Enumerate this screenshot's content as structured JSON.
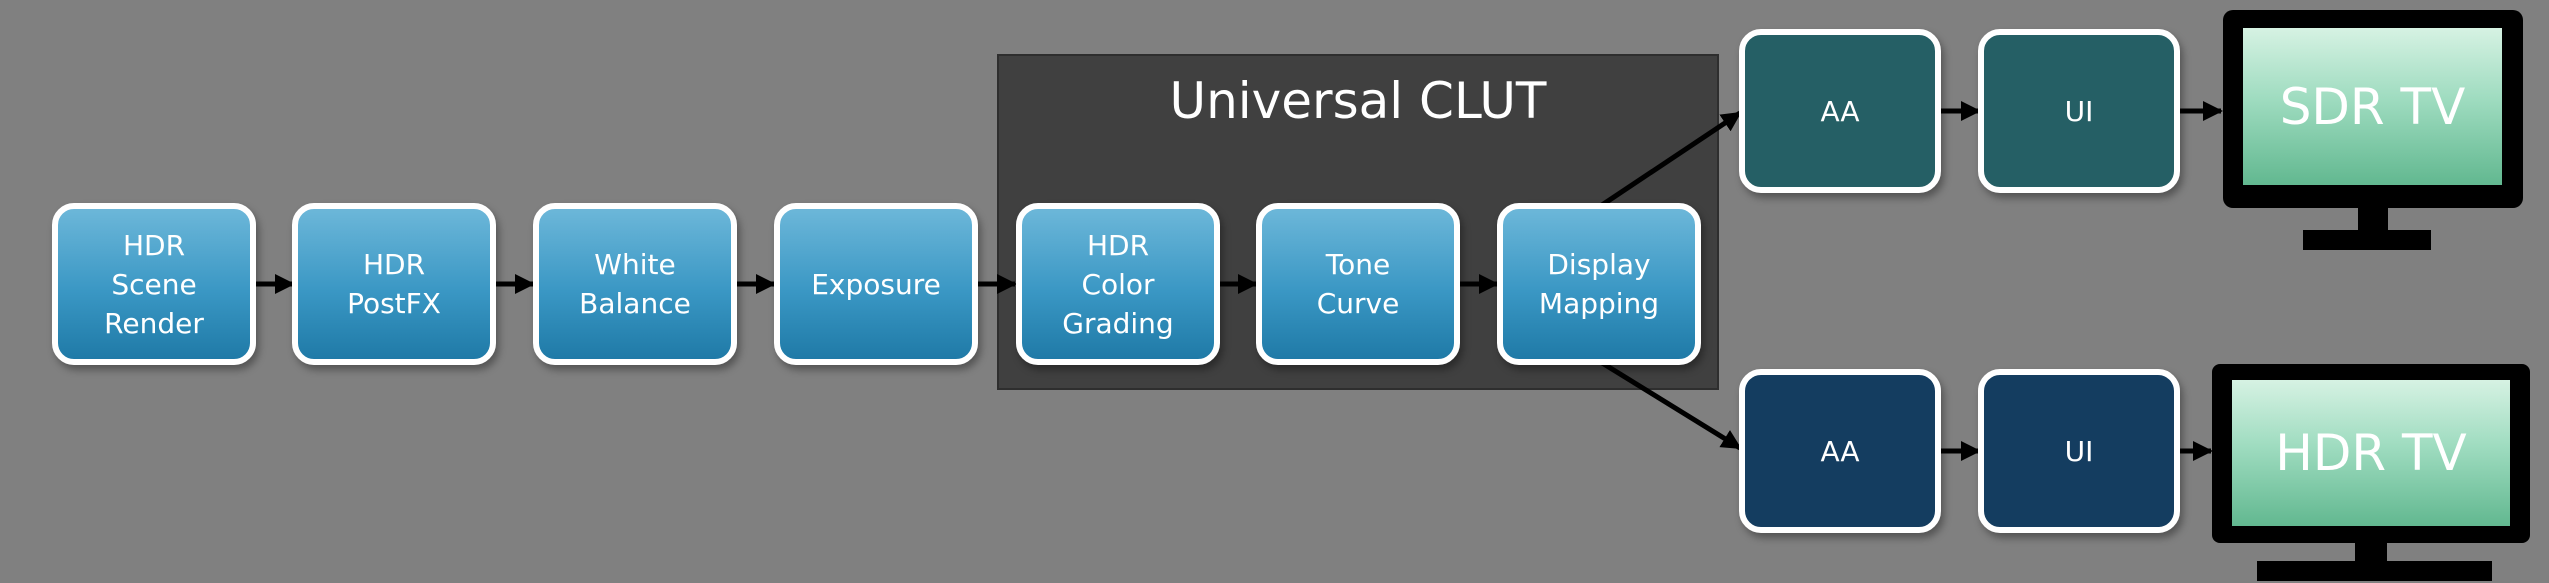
{
  "diagram": {
    "group_title": "Universal CLUT",
    "pipeline": [
      "HDR\nScene\nRender",
      "HDR\nPostFX",
      "White\nBalance",
      "Exposure",
      "HDR\nColor\nGrading",
      "Tone\nCurve",
      "Display\nMapping"
    ],
    "sdr_branch": {
      "aa": "AA",
      "ui": "UI",
      "display": "SDR TV"
    },
    "hdr_branch": {
      "aa": "AA",
      "ui": "UI",
      "display": "HDR TV"
    }
  },
  "colors": {
    "background": "#808080",
    "group_panel": "#404040",
    "pipeline_box": "#3a97c4",
    "sdr_box": "#255f65",
    "hdr_box": "#143d60",
    "screen": "#9fdcc0"
  }
}
